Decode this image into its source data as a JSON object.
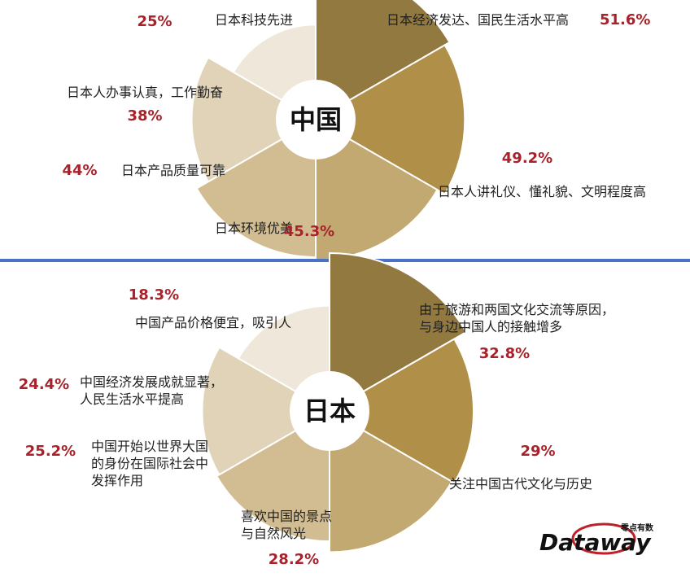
{
  "chart_data": [
    {
      "type": "pie",
      "center_label": "中国",
      "slices": [
        {
          "label": [
            "日本经济发达、国民生活水平高"
          ],
          "value": "51.6%",
          "pct": 51.6,
          "color": "#927940"
        },
        {
          "label": [
            "日本人讲礼仪、懂礼貌、文明程度高"
          ],
          "value": "49.2%",
          "pct": 49.2,
          "color": "#b08f49"
        },
        {
          "label": [
            "日本环境优美"
          ],
          "value": "45.3%",
          "pct": 45.3,
          "color": "#c2a871"
        },
        {
          "label": [
            "日本产品质量可靠"
          ],
          "value": "44%",
          "pct": 44,
          "color": "#d1bd91"
        },
        {
          "label": [
            "日本人办事认真，工作勤奋"
          ],
          "value": "38%",
          "pct": 38,
          "color": "#e0d3b8"
        },
        {
          "label": [
            "日本科技先进"
          ],
          "value": "25%",
          "pct": 25,
          "color": "#efe7da"
        }
      ]
    },
    {
      "type": "pie",
      "center_label": "日本",
      "slices": [
        {
          "label": [
            "由于旅游和两国文化交流等原因，",
            "与身边中国人的接触增多"
          ],
          "value": "32.8%",
          "pct": 32.8,
          "color": "#927940"
        },
        {
          "label": [
            "关注中国古代文化与历史"
          ],
          "value": "29%",
          "pct": 29,
          "color": "#b08f49"
        },
        {
          "label": [
            "喜欢中国的景点",
            "与自然风光"
          ],
          "value": "28.2%",
          "pct": 28.2,
          "color": "#c2a871"
        },
        {
          "label": [
            "中国开始以世界大国",
            "的身份在国际社会中",
            "发挥作用"
          ],
          "value": "25.2%",
          "pct": 25.2,
          "color": "#d1bd91"
        },
        {
          "label": [
            "中国经济发展成就显著，",
            "人民生活水平提高"
          ],
          "value": "24.4%",
          "pct": 24.4,
          "color": "#e0d3b8"
        },
        {
          "label": [
            "中国产品价格便宜，吸引人"
          ],
          "value": "18.3%",
          "pct": 18.3,
          "color": "#efe7da"
        }
      ]
    }
  ],
  "divider_color": "#4a72c4",
  "logo": {
    "main": "Dataway",
    "sub": "零点有数"
  }
}
